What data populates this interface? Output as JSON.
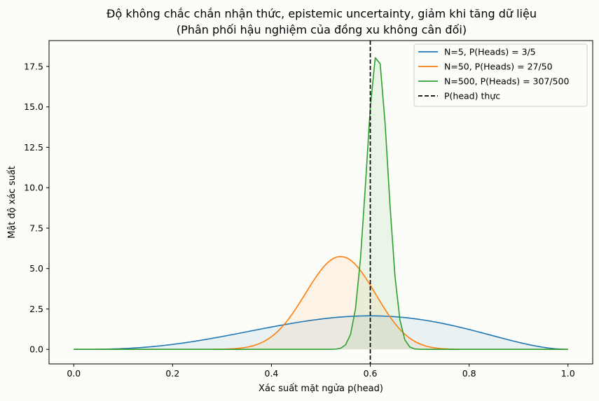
{
  "chart_data": {
    "type": "line",
    "title": "Độ không chắc chắn nhận thức, epistemic uncertainty, giảm khi tăng dữ liệu",
    "subtitle": "(Phân phối hậu nghiệm của đồng xu không cân đối)",
    "xlabel": "Xác suất mặt ngửa p(head)",
    "ylabel": "Mật độ xác suất",
    "xlim": [
      -0.05,
      1.05
    ],
    "ylim": [
      -0.9,
      19.1
    ],
    "xticks": [
      0.0,
      0.2,
      0.4,
      0.6,
      0.8,
      1.0
    ],
    "xtick_labels": [
      "0.0",
      "0.2",
      "0.4",
      "0.6",
      "0.8",
      "1.0"
    ],
    "yticks": [
      0.0,
      2.5,
      5.0,
      7.5,
      10.0,
      12.5,
      15.0,
      17.5
    ],
    "ytick_labels": [
      "0.0",
      "2.5",
      "5.0",
      "7.5",
      "10.0",
      "12.5",
      "15.0",
      "17.5"
    ],
    "grid": false,
    "legend_position": "top-right",
    "series": [
      {
        "name": "N=5, P(Heads) = 3/5",
        "color": "#1f77b4",
        "distribution": "beta",
        "alpha": 4,
        "beta": 3,
        "filled": true
      },
      {
        "name": "N=50, P(Heads) = 27/50",
        "color": "#ff7f0e",
        "distribution": "beta",
        "alpha": 28,
        "beta": 24,
        "filled": true
      },
      {
        "name": "N=500, P(Heads) = 307/500",
        "color": "#2ca02c",
        "distribution": "beta",
        "alpha": 308,
        "beta": 194,
        "filled": true,
        "sample_points": 100
      }
    ],
    "reference_line": {
      "name": "P(head) thực",
      "x": 0.6,
      "color": "#000000",
      "style": "dashed"
    }
  }
}
